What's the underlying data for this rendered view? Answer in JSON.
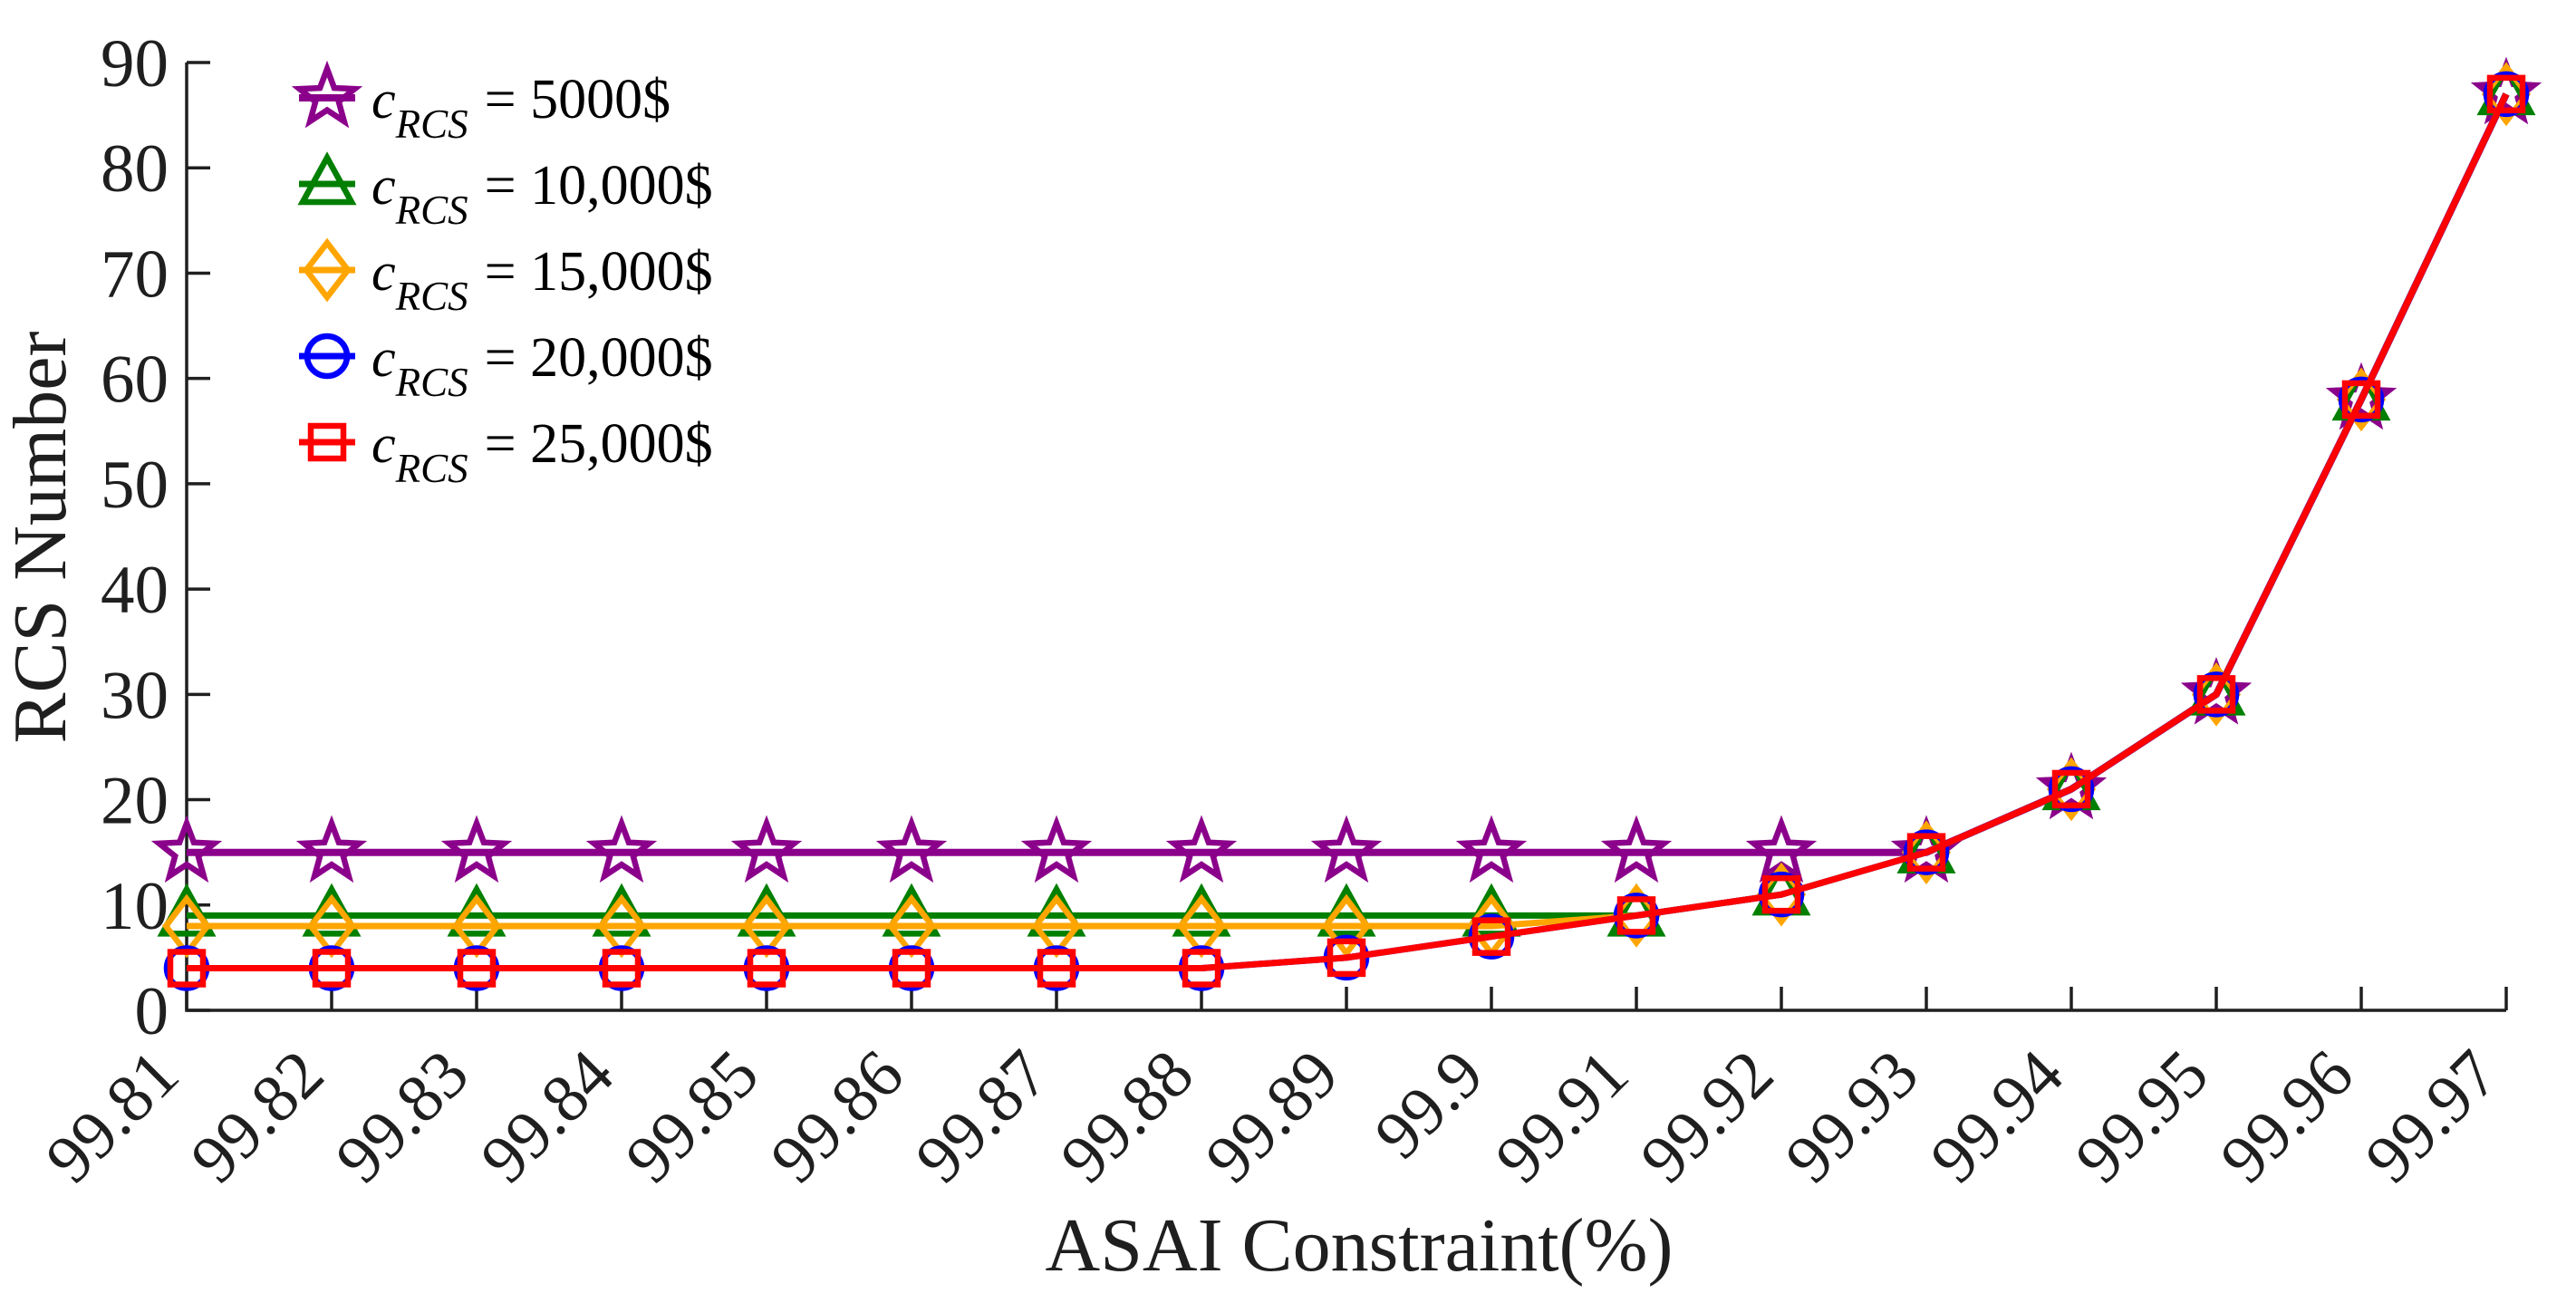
{
  "figure": {
    "background": "#ffffff",
    "axis_color": "#1f1f1f"
  },
  "chart_data": {
    "type": "line",
    "title": "",
    "xlabel": "ASAI Constraint(%)",
    "ylabel": "RCS Number",
    "grid": false,
    "legend_position": "top-left-inside",
    "x_tick_labels": [
      "99.81",
      "99.82",
      "99.83",
      "99.84",
      "99.85",
      "99.86",
      "99.87",
      "99.88",
      "99.89",
      "99.9",
      "99.91",
      "99.92",
      "99.93",
      "99.94",
      "99.95",
      "99.96",
      "99.97"
    ],
    "x_values": [
      99.81,
      99.82,
      99.83,
      99.84,
      99.85,
      99.86,
      99.87,
      99.88,
      99.89,
      99.9,
      99.91,
      99.92,
      99.93,
      99.94,
      99.95,
      99.96,
      99.97
    ],
    "y_ticks": [
      0,
      10,
      20,
      30,
      40,
      50,
      60,
      70,
      80,
      90
    ],
    "ylim": [
      0,
      90
    ],
    "series": [
      {
        "name": "c_RCS = 5000$",
        "legend": {
          "var": "c",
          "sub": "RCS",
          "eq": "= 5000$"
        },
        "color": "#8B008B",
        "marker": "star",
        "line_width": 8,
        "values": [
          15,
          15,
          15,
          15,
          15,
          15,
          15,
          15,
          15,
          15,
          15,
          15,
          15,
          21,
          30,
          58,
          87
        ]
      },
      {
        "name": "c_RCS = 10,000$",
        "legend": {
          "var": "c",
          "sub": "RCS",
          "eq": "= 10,000$"
        },
        "color": "#007F00",
        "marker": "triangle",
        "line_width": 7,
        "values": [
          9,
          9,
          9,
          9,
          9,
          9,
          9,
          9,
          9,
          9,
          9,
          11,
          15,
          21,
          30,
          58,
          87
        ]
      },
      {
        "name": "c_RCS = 15,000$",
        "legend": {
          "var": "c",
          "sub": "RCS",
          "eq": "= 15,000$"
        },
        "color": "#FFA500",
        "marker": "diamond",
        "line_width": 7,
        "values": [
          8,
          8,
          8,
          8,
          8,
          8,
          8,
          8,
          8,
          8,
          9,
          11,
          15,
          21,
          30,
          58,
          87
        ]
      },
      {
        "name": "c_RCS = 20,000$",
        "legend": {
          "var": "c",
          "sub": "RCS",
          "eq": "= 20,000$"
        },
        "color": "#0000FF",
        "marker": "circle",
        "line_width": 7,
        "values": [
          4,
          4,
          4,
          4,
          4,
          4,
          4,
          4,
          5,
          7,
          9,
          11,
          15,
          21,
          30,
          58,
          87
        ]
      },
      {
        "name": "c_RCS = 25,000$",
        "legend": {
          "var": "c",
          "sub": "RCS",
          "eq": "= 25,000$"
        },
        "color": "#FF0000",
        "marker": "square",
        "line_width": 7,
        "values": [
          4,
          4,
          4,
          4,
          4,
          4,
          4,
          4,
          5,
          7,
          9,
          11,
          15,
          21,
          30,
          58,
          87
        ]
      }
    ]
  }
}
